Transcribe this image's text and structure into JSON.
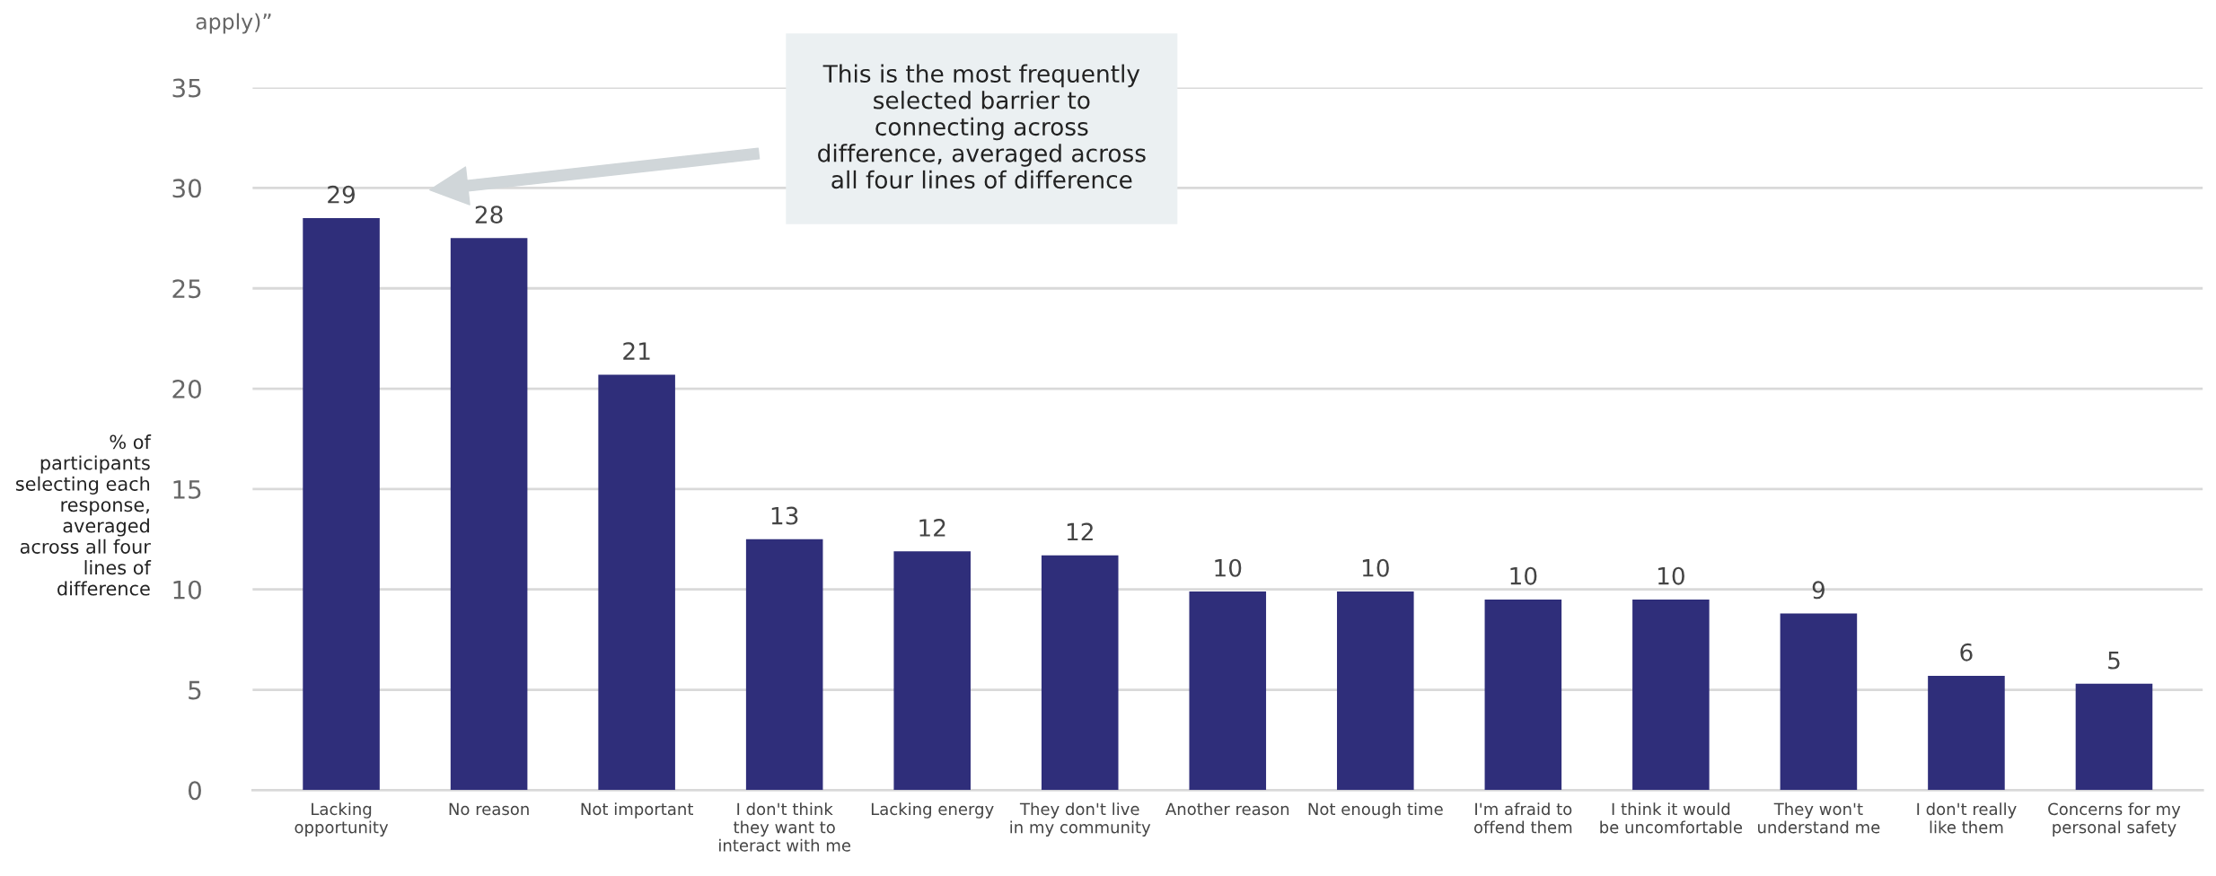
{
  "chart_data": {
    "type": "bar",
    "title": "apply)”",
    "ylabel": "% of\nparticipants\nselecting each\nresponse,\naveraged\nacross all four\nlines of\ndifference",
    "categories": [
      "Lacking opportunity",
      "No reason",
      "Not important",
      "I don't think they want to interact with me",
      "Lacking energy",
      "They don't live in my community",
      "Another reason",
      "Not enough time",
      "I'm afraid to offend them",
      "I think it would be uncomfortable",
      "They won't understand me",
      "I don't really like them",
      "Concerns for my personal safety"
    ],
    "values": [
      28.5,
      27.5,
      20.7,
      12.5,
      11.9,
      11.7,
      9.9,
      9.9,
      9.5,
      9.5,
      8.8,
      5.7,
      5.3
    ],
    "value_labels": [
      "29",
      "28",
      "21",
      "13",
      "12",
      "12",
      "10",
      "10",
      "10",
      "10",
      "9",
      "6",
      "5"
    ],
    "color": "#2f2e7a",
    "ylim": [
      0,
      35
    ],
    "yticks": [
      0,
      5,
      10,
      15,
      20,
      25,
      30,
      35
    ],
    "grid": "y",
    "legend": false,
    "annotations": [
      "This is the most frequently\nselected barrier to\nconnecting across\ndifference, averaged across\nall four lines of difference"
    ]
  }
}
